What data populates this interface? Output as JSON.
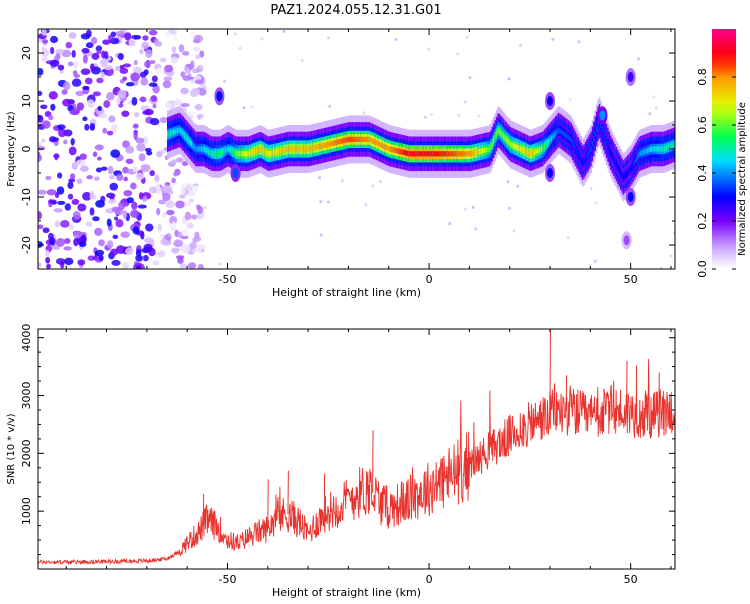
{
  "title": "PAZ1.2024.055.12.31.G01",
  "chart_data": [
    {
      "type": "heatmap",
      "xlabel": "Height of straight line (km)",
      "ylabel": "Frequency (Hz)",
      "xlim": [
        -97,
        61
      ],
      "ylim": [
        -25,
        25
      ],
      "x_ticks": [
        -50,
        0,
        50
      ],
      "y_ticks": [
        20,
        10,
        0,
        -10,
        -20
      ],
      "colorbar": {
        "label": "Normalized spectral amplitude",
        "ticks": [
          0.0,
          0.2,
          0.4,
          0.6,
          0.8
        ],
        "range": [
          0,
          1
        ],
        "colors": [
          "#ffffff",
          "#7700ff",
          "#0000ff",
          "#00ffff",
          "#00ff00",
          "#ffff00",
          "#ff8800",
          "#ff0000",
          "#ff0088"
        ]
      },
      "ridge": {
        "description_free": true,
        "x": [
          -65,
          -62,
          -60,
          -58,
          -56,
          -54,
          -52,
          -50,
          -48,
          -45,
          -42,
          -40,
          -35,
          -30,
          -25,
          -20,
          -15,
          -10,
          -5,
          0,
          5,
          10,
          15,
          17,
          20,
          25,
          28,
          30,
          32,
          35,
          38,
          40,
          42,
          45,
          48,
          50,
          52,
          55,
          58,
          61
        ],
        "y": [
          3,
          4,
          2,
          0,
          0,
          -1,
          -1,
          0,
          -1,
          -1,
          0,
          -1,
          0,
          0,
          1,
          2,
          2,
          0,
          -1,
          -1,
          -1,
          -1,
          0,
          4,
          1,
          -1,
          0,
          2,
          4,
          2,
          -3,
          0,
          6,
          -1,
          -6,
          -4,
          -1,
          0,
          0,
          1
        ],
        "peak_amplitude": [
          0.5,
          0.45,
          0.5,
          0.4,
          0.45,
          0.5,
          0.55,
          0.45,
          0.6,
          0.7,
          0.75,
          0.7,
          0.75,
          0.75,
          0.8,
          0.85,
          0.8,
          0.8,
          0.9,
          0.9,
          0.85,
          0.8,
          0.6,
          0.6,
          0.65,
          0.75,
          0.6,
          0.45,
          0.35,
          0.35,
          0.3,
          0.35,
          0.35,
          0.3,
          0.3,
          0.3,
          0.4,
          0.45,
          0.5,
          0.5
        ]
      },
      "noise_region": {
        "x_range": [
          -97,
          -62
        ],
        "amplitude": [
          0.1,
          0.3
        ]
      }
    },
    {
      "type": "line",
      "xlabel": "Height of straight line (km)",
      "ylabel": "SNR (10 * v/v)",
      "xlim": [
        -97,
        61
      ],
      "ylim": [
        0,
        4150
      ],
      "x_ticks": [
        -50,
        0,
        50
      ],
      "y_ticks": [
        1000,
        2000,
        3000,
        4000
      ],
      "color": "#e8332e",
      "series": [
        {
          "x": [
            -97,
            -90,
            -80,
            -70,
            -65,
            -62,
            -60,
            -57,
            -55,
            -52,
            -50,
            -47,
            -45,
            -42,
            -40,
            -38,
            -35,
            -32,
            -30,
            -28,
            -25,
            -22,
            -20,
            -18,
            -15,
            -12,
            -10,
            -5,
            0,
            5,
            10,
            15,
            20,
            25,
            28,
            30,
            31,
            32,
            35,
            40,
            45,
            50,
            55,
            60,
            61
          ],
          "y": [
            120,
            120,
            130,
            140,
            180,
            300,
            450,
            650,
            850,
            700,
            500,
            450,
            550,
            650,
            700,
            900,
            950,
            800,
            600,
            800,
            1000,
            1100,
            1200,
            1300,
            1400,
            1150,
            1050,
            1200,
            1400,
            1600,
            1800,
            2050,
            2300,
            2500,
            2600,
            2650,
            2800,
            2700,
            2750,
            2600,
            2750,
            2700,
            2650,
            2750,
            2700
          ]
        }
      ],
      "spikes": [
        {
          "x": -56,
          "y": 1300
        },
        {
          "x": -40,
          "y": 1550
        },
        {
          "x": -35,
          "y": 1700
        },
        {
          "x": -26,
          "y": 1650
        },
        {
          "x": -14,
          "y": 2400
        },
        {
          "x": 30,
          "y": 4150
        },
        {
          "x": 34,
          "y": 3350
        },
        {
          "x": 49,
          "y": 3600
        },
        {
          "x": 57,
          "y": 3400
        }
      ]
    }
  ]
}
